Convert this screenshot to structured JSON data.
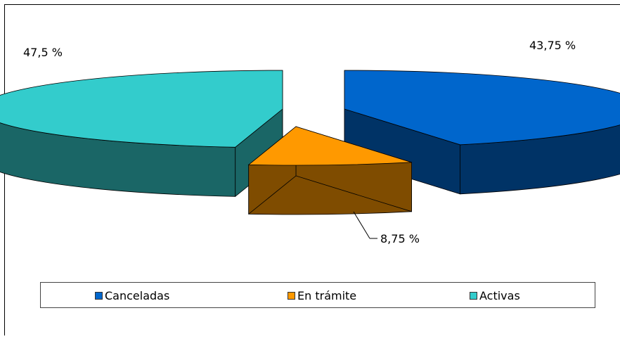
{
  "chart_data": {
    "type": "pie",
    "title": "",
    "categories": [
      "Canceladas",
      "En trámite",
      "Activas"
    ],
    "values": [
      43.75,
      8.75,
      47.5
    ],
    "data_labels": [
      "43,75 %",
      "8,75 %",
      "47,5 %"
    ],
    "colors": {
      "top": [
        "#0066CC",
        "#FF9900",
        "#33CCCC"
      ],
      "side": [
        "#003366",
        "#7F4C00",
        "#1A6666"
      ]
    },
    "legend": {
      "position": "bottom",
      "entries": [
        "Canceladas",
        "En trámite",
        "Activas"
      ]
    },
    "style": "3d-exploded"
  }
}
